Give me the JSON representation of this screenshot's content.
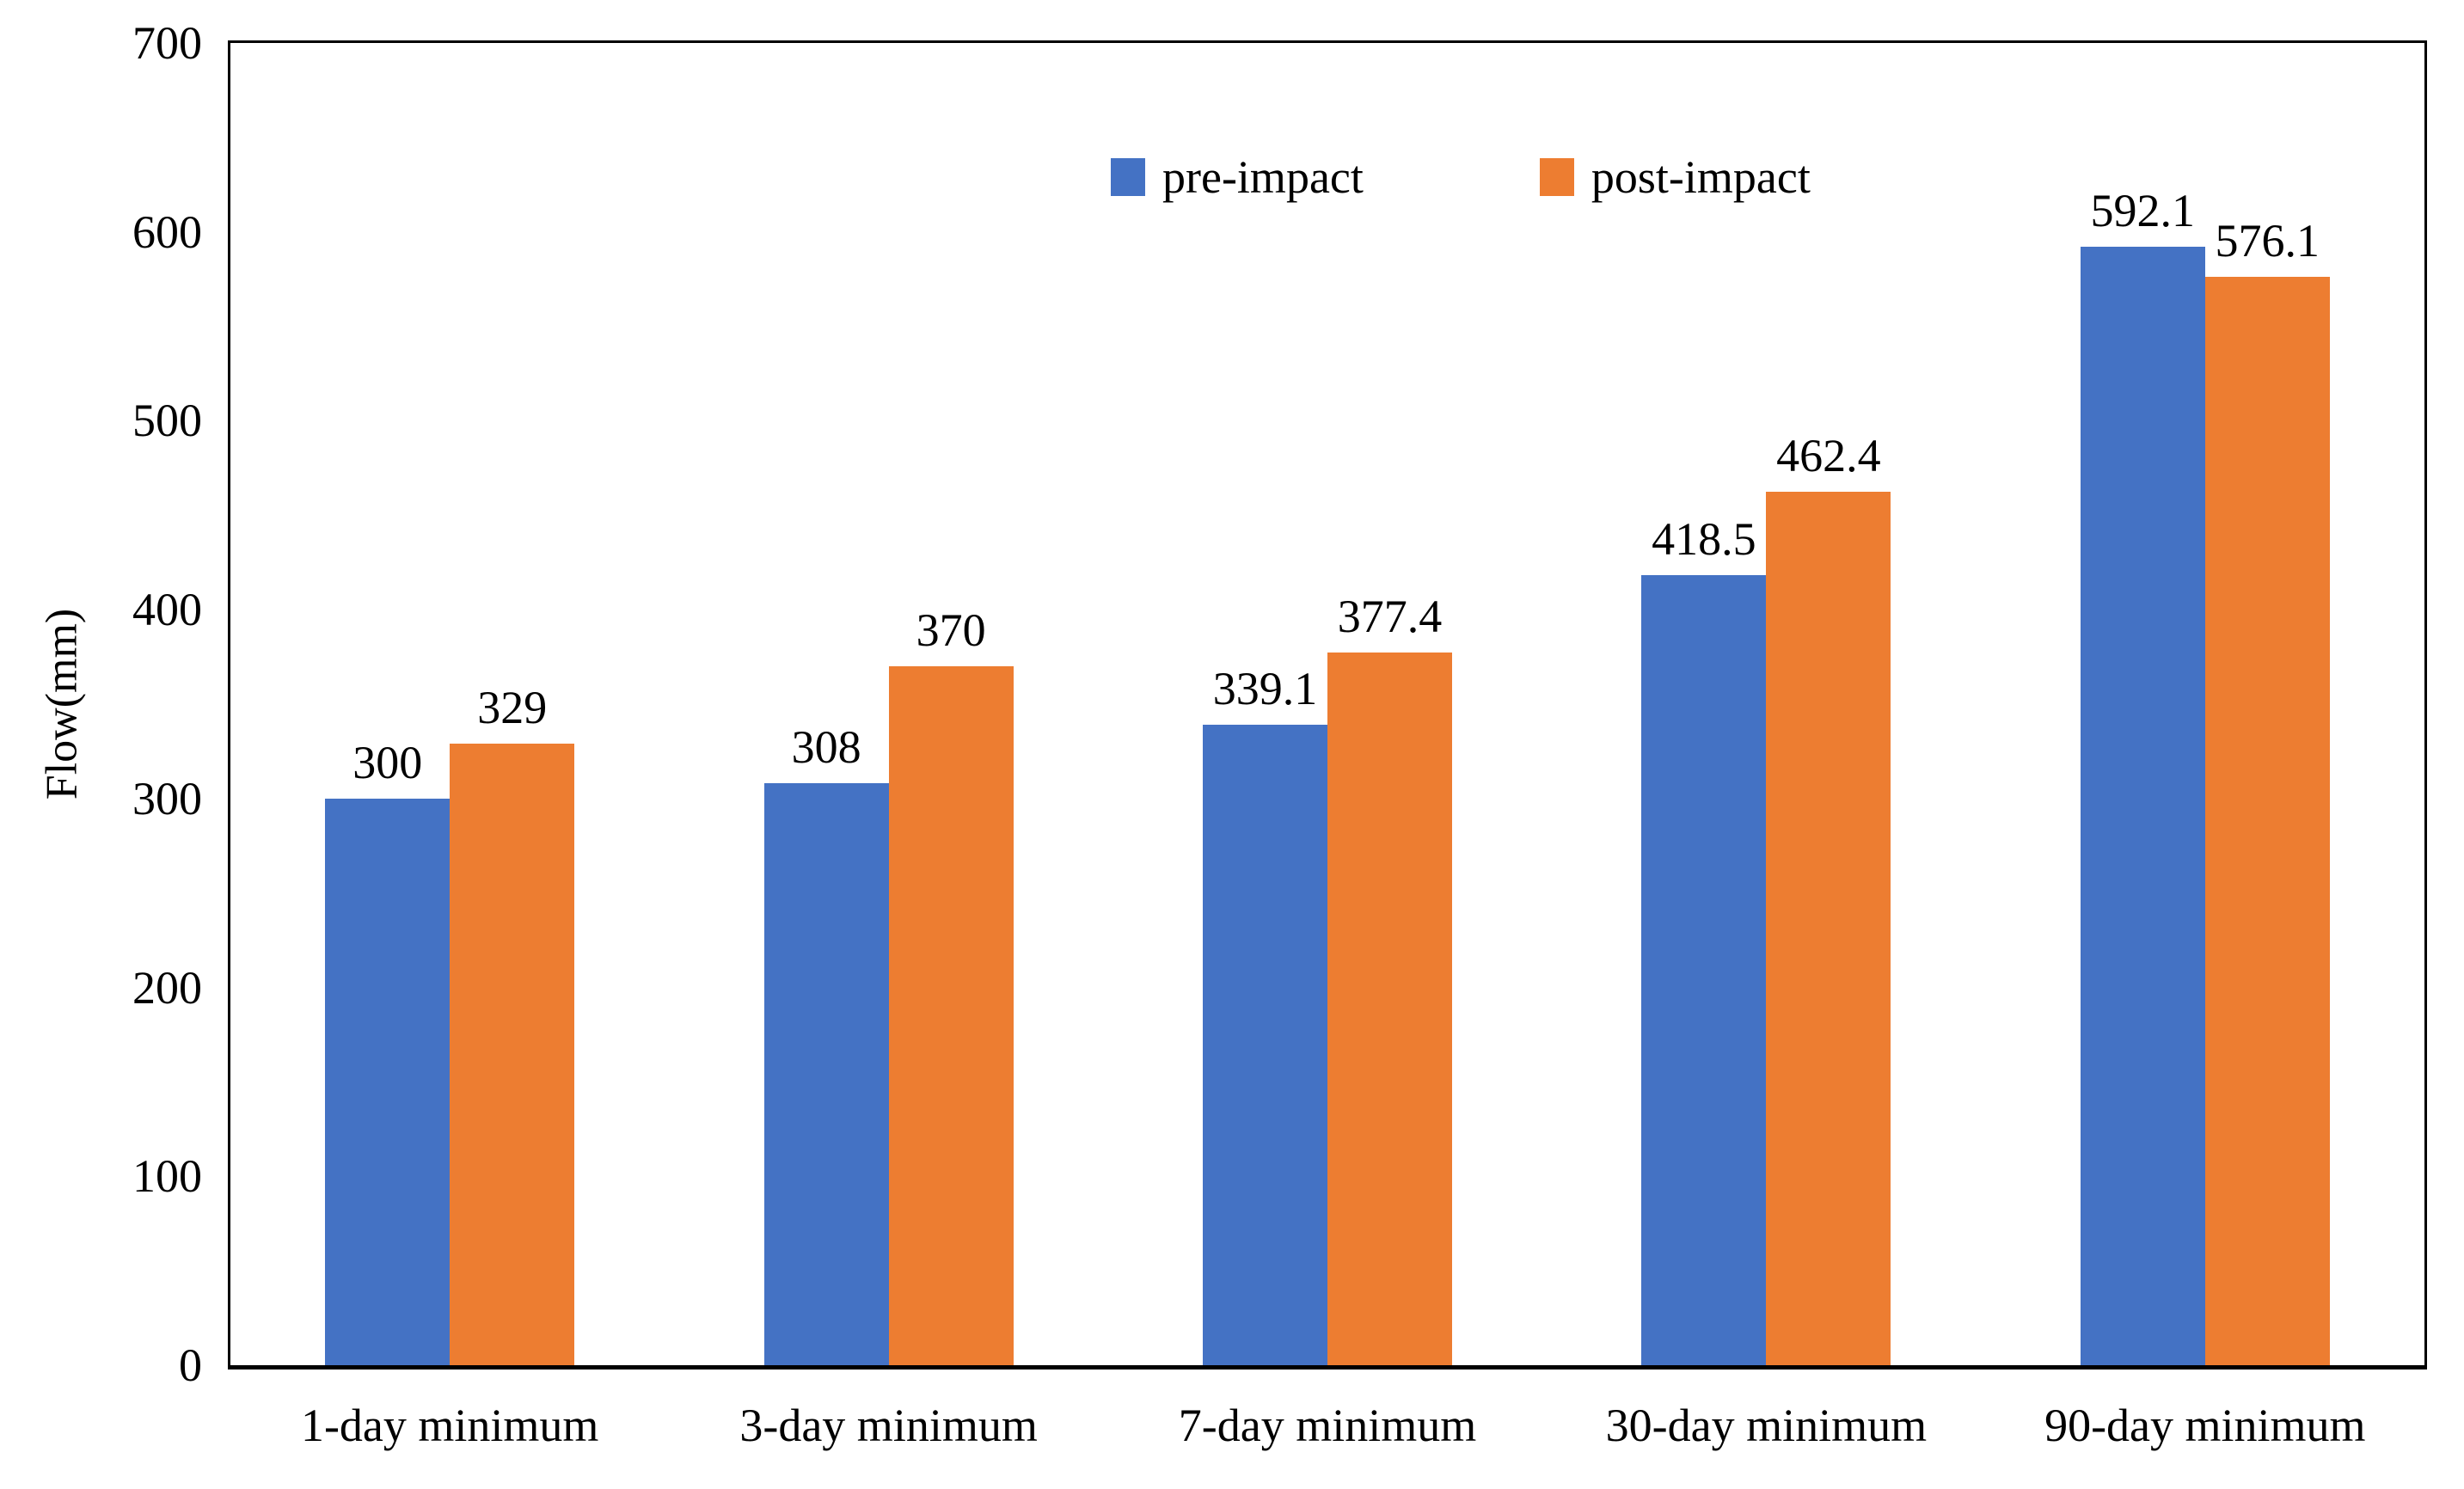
{
  "chart_data": {
    "type": "bar",
    "title": "",
    "categories": [
      "1-day minimum",
      "3-day minimum",
      "7-day minimum",
      "30-day minimum",
      "90-day minimum"
    ],
    "series": [
      {
        "name": "pre-impact",
        "color": "#4472C4",
        "values": [
          300,
          308,
          339.1,
          418.5,
          592.1
        ],
        "value_labels": [
          "300",
          "308",
          "339.1",
          "418.5",
          "592.1"
        ]
      },
      {
        "name": "post-impact",
        "color": "#ED7D31",
        "values": [
          329,
          370,
          377.4,
          462.4,
          576.1
        ],
        "value_labels": [
          "329",
          "370",
          "377.4",
          "462.4",
          "576.1"
        ]
      }
    ],
    "xlabel": "",
    "ylabel": "Flow(mm)",
    "ylim": [
      0,
      700
    ],
    "yticks": [
      0,
      100,
      200,
      300,
      400,
      500,
      600,
      700
    ],
    "grid": false,
    "legend_position": "top-center-inside",
    "plot_border_color": "#000000",
    "text_color": "#000000",
    "background": "#FFFFFF"
  }
}
